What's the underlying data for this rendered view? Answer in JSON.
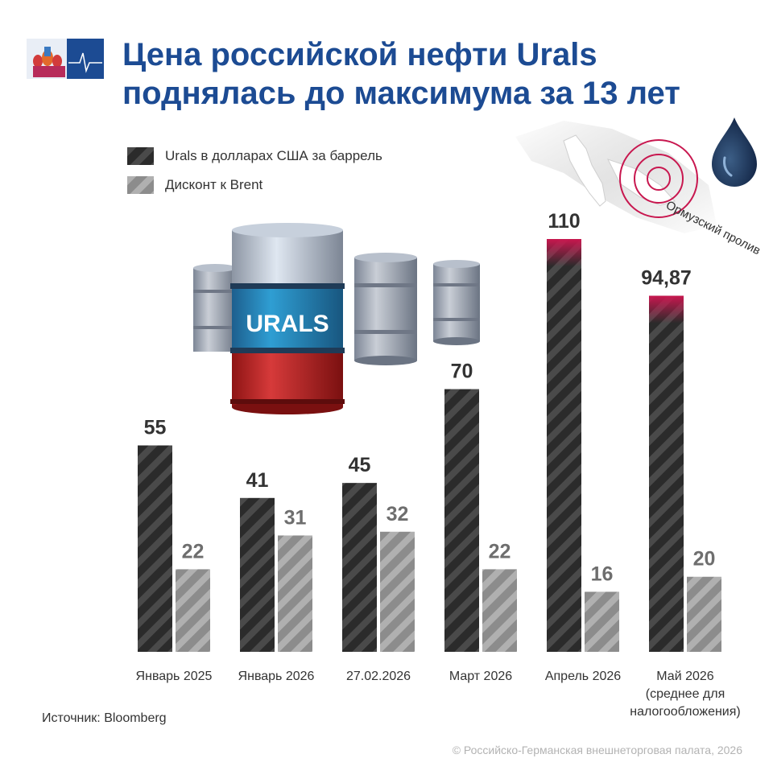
{
  "title": "Цена российской нефти Urals поднялась до максимума за 13 лет",
  "title_lines": [
    "Цена российской нефти Urals",
    "поднялась до максимума за 13 лет"
  ],
  "legend": [
    {
      "label": "Urals в долларах США за баррель",
      "color": "#2f2f2f"
    },
    {
      "label": "Дисконт к Brent",
      "color": "#9a9a9a"
    }
  ],
  "barrel_label": "URALS",
  "map_label": "Ормузский пролив",
  "source": "Источник: Bloomberg",
  "copyright": "© Российско-Германская внешнеторговая палата, 2026",
  "colors": {
    "title": "#1c4b93",
    "urals": "#2f2f2f",
    "discount": "#9a9a9a",
    "highlight": "#c8174f"
  },
  "chart_data": {
    "type": "bar",
    "categories": [
      "Январь 2025",
      "Январь 2026",
      "27.02.2026",
      "Март 2026",
      "Апрель 2026",
      "Май 2026"
    ],
    "category_sublabels": [
      "",
      "",
      "",
      "",
      "",
      "(среднее для налогообложения)"
    ],
    "series": [
      {
        "name": "Urals в долларах США за баррель",
        "values": [
          55,
          41,
          45,
          70,
          110,
          94.87
        ],
        "labels": [
          "55",
          "41",
          "45",
          "70",
          "110",
          "94,87"
        ]
      },
      {
        "name": "Дисконт к Brent",
        "values": [
          22,
          31,
          32,
          22,
          16,
          20
        ],
        "labels": [
          "22",
          "31",
          "32",
          "22",
          "16",
          "20"
        ]
      }
    ],
    "ylim": [
      0,
      110
    ],
    "grid": false,
    "legend_position": "top-left"
  }
}
